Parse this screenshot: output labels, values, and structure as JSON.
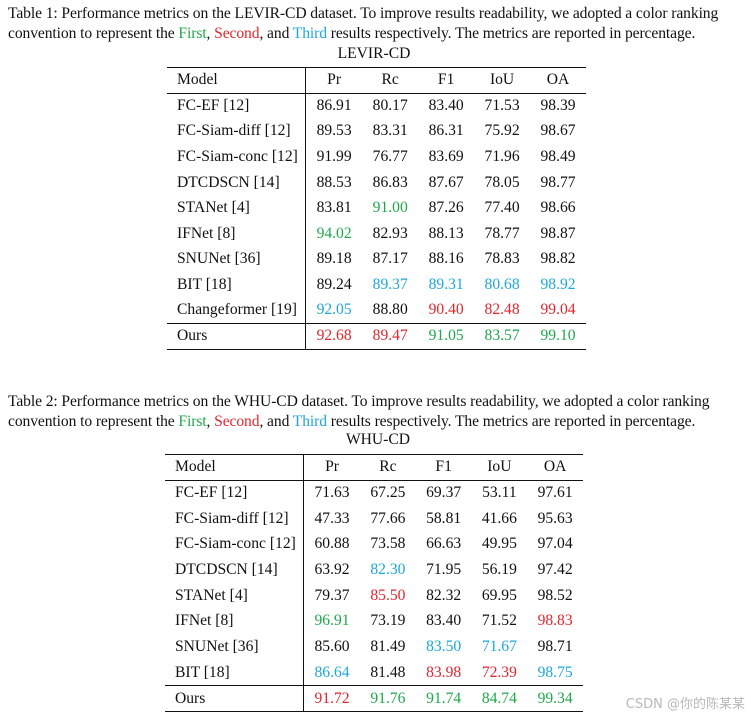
{
  "colors": {
    "first": "#1fa84a",
    "second": "#e0262e",
    "third": "#1ea7d9"
  },
  "table1": {
    "caption_prefix": "Table 1: Performance metrics on the LEVIR-CD dataset. To improve results readability, we adopted a color ranking convention to represent the ",
    "caption_first": "First",
    "caption_sep1": ", ",
    "caption_second": "Second",
    "caption_sep2": ", and ",
    "caption_third": "Third",
    "caption_suffix": " results respectively. The metrics are reported in percentage.",
    "dataset": "LEVIR-CD",
    "headers": [
      "Model",
      "Pr",
      "Rc",
      "F1",
      "IoU",
      "OA"
    ],
    "rows": [
      {
        "model": "FC-EF [12]",
        "values": [
          "86.91",
          "80.17",
          "83.40",
          "71.53",
          "98.39"
        ],
        "ranks": [
          "",
          "",
          "",
          "",
          ""
        ]
      },
      {
        "model": "FC-Siam-diff [12]",
        "values": [
          "89.53",
          "83.31",
          "86.31",
          "75.92",
          "98.67"
        ],
        "ranks": [
          "",
          "",
          "",
          "",
          ""
        ]
      },
      {
        "model": "FC-Siam-conc [12]",
        "values": [
          "91.99",
          "76.77",
          "83.69",
          "71.96",
          "98.49"
        ],
        "ranks": [
          "",
          "",
          "",
          "",
          ""
        ]
      },
      {
        "model": "DTCDSCN [14]",
        "values": [
          "88.53",
          "86.83",
          "87.67",
          "78.05",
          "98.77"
        ],
        "ranks": [
          "",
          "",
          "",
          "",
          ""
        ]
      },
      {
        "model": "STANet [4]",
        "values": [
          "83.81",
          "91.00",
          "87.26",
          "77.40",
          "98.66"
        ],
        "ranks": [
          "",
          "first",
          "",
          "",
          ""
        ]
      },
      {
        "model": "IFNet [8]",
        "values": [
          "94.02",
          "82.93",
          "88.13",
          "78.77",
          "98.87"
        ],
        "ranks": [
          "first",
          "",
          "",
          "",
          ""
        ]
      },
      {
        "model": "SNUNet [36]",
        "values": [
          "89.18",
          "87.17",
          "88.16",
          "78.83",
          "98.82"
        ],
        "ranks": [
          "",
          "",
          "",
          "",
          ""
        ]
      },
      {
        "model": "BIT [18]",
        "values": [
          "89.24",
          "89.37",
          "89.31",
          "80.68",
          "98.92"
        ],
        "ranks": [
          "",
          "third",
          "third",
          "third",
          "third"
        ]
      },
      {
        "model": "Changeformer [19]",
        "values": [
          "92.05",
          "88.80",
          "90.40",
          "82.48",
          "99.04"
        ],
        "ranks": [
          "third",
          "",
          "second",
          "second",
          "second"
        ]
      },
      {
        "model": "Ours",
        "values": [
          "92.68",
          "89.47",
          "91.05",
          "83.57",
          "99.10"
        ],
        "ranks": [
          "second",
          "second",
          "first",
          "first",
          "first"
        ]
      }
    ]
  },
  "table2": {
    "caption_prefix": "Table 2: Performance metrics on the WHU-CD dataset. To improve results readability, we adopted a color ranking convention to represent the ",
    "caption_first": "First",
    "caption_sep1": ", ",
    "caption_second": "Second",
    "caption_sep2": ", and ",
    "caption_third": "Third",
    "caption_suffix": " results respectively. The metrics are reported in percentage.",
    "dataset": "WHU-CD",
    "headers": [
      "Model",
      "Pr",
      "Rc",
      "F1",
      "IoU",
      "OA"
    ],
    "rows": [
      {
        "model": "FC-EF [12]",
        "values": [
          "71.63",
          "67.25",
          "69.37",
          "53.11",
          "97.61"
        ],
        "ranks": [
          "",
          "",
          "",
          "",
          ""
        ]
      },
      {
        "model": "FC-Siam-diff [12]",
        "values": [
          "47.33",
          "77.66",
          "58.81",
          "41.66",
          "95.63"
        ],
        "ranks": [
          "",
          "",
          "",
          "",
          ""
        ]
      },
      {
        "model": "FC-Siam-conc [12]",
        "values": [
          "60.88",
          "73.58",
          "66.63",
          "49.95",
          "97.04"
        ],
        "ranks": [
          "",
          "",
          "",
          "",
          ""
        ]
      },
      {
        "model": "DTCDSCN [14]",
        "values": [
          "63.92",
          "82.30",
          "71.95",
          "56.19",
          "97.42"
        ],
        "ranks": [
          "",
          "third",
          "",
          "",
          ""
        ]
      },
      {
        "model": "STANet [4]",
        "values": [
          "79.37",
          "85.50",
          "82.32",
          "69.95",
          "98.52"
        ],
        "ranks": [
          "",
          "second",
          "",
          "",
          ""
        ]
      },
      {
        "model": "IFNet [8]",
        "values": [
          "96.91",
          "73.19",
          "83.40",
          "71.52",
          "98.83"
        ],
        "ranks": [
          "first",
          "",
          "",
          "",
          "second"
        ]
      },
      {
        "model": "SNUNet [36]",
        "values": [
          "85.60",
          "81.49",
          "83.50",
          "71.67",
          "98.71"
        ],
        "ranks": [
          "",
          "",
          "third",
          "third",
          ""
        ]
      },
      {
        "model": "BIT [18]",
        "values": [
          "86.64",
          "81.48",
          "83.98",
          "72.39",
          "98.75"
        ],
        "ranks": [
          "third",
          "",
          "second",
          "second",
          "third"
        ]
      },
      {
        "model": "Ours",
        "values": [
          "91.72",
          "91.76",
          "91.74",
          "84.74",
          "99.34"
        ],
        "ranks": [
          "second",
          "first",
          "first",
          "first",
          "first"
        ]
      }
    ]
  },
  "watermark": "CSDN @你的陈某某"
}
